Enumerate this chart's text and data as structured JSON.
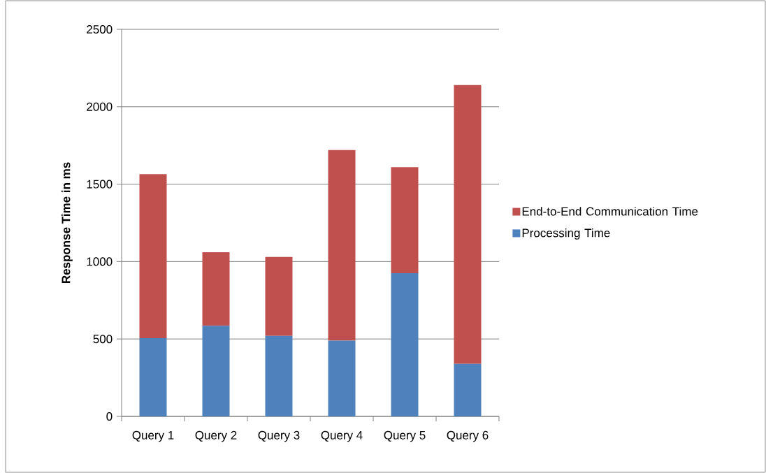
{
  "chart_data": {
    "type": "bar",
    "stacked": true,
    "ylabel": "Response Time in ms",
    "categories": [
      "Query 1",
      "Query 2",
      "Query 3",
      "Query 4",
      "Query 5",
      "Query 6"
    ],
    "series": [
      {
        "name": "Processing Time",
        "color": "#4f81bd",
        "values": [
          505,
          585,
          520,
          490,
          925,
          340
        ]
      },
      {
        "name": "End-to-End Communication Time",
        "color": "#c0504d",
        "values": [
          1060,
          475,
          510,
          1230,
          685,
          1800
        ]
      }
    ],
    "ylim": [
      0,
      2500
    ],
    "yticks": [
      0,
      500,
      1000,
      1500,
      2000,
      2500
    ],
    "grid": "y",
    "legend": "right"
  }
}
